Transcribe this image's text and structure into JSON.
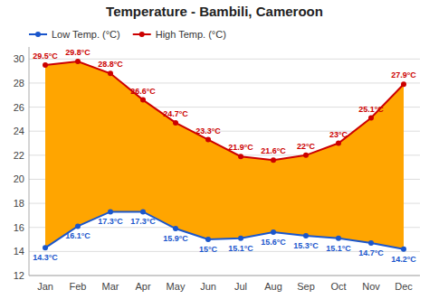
{
  "chart_data": {
    "type": "line",
    "title": "Temperature - Bambili, Cameroon",
    "categories": [
      "Jan",
      "Feb",
      "Mar",
      "Apr",
      "May",
      "Jun",
      "Jul",
      "Aug",
      "Sep",
      "Oct",
      "Nov",
      "Dec"
    ],
    "series": [
      {
        "name": "Low Temp. (°C)",
        "color": "#1a56cc",
        "marker": "circle",
        "values": [
          14.3,
          16.1,
          17.3,
          17.3,
          15.9,
          15.0,
          15.1,
          15.6,
          15.3,
          15.1,
          14.7,
          14.2
        ],
        "value_labels": [
          "14.3°C",
          "16.1°C",
          "17.3°C",
          "17.3°C",
          "15.9°C",
          "15°C",
          "15.1°C",
          "15.6°C",
          "15.3°C",
          "15.1°C",
          "14.7°C",
          "14.2°C"
        ]
      },
      {
        "name": "High Temp. (°C)",
        "color": "#cc0000",
        "marker": "circle",
        "values": [
          29.5,
          29.8,
          28.8,
          26.6,
          24.7,
          23.3,
          21.9,
          21.6,
          22.0,
          23.0,
          25.1,
          27.9
        ],
        "value_labels": [
          "29.5°C",
          "29.8°C",
          "28.8°C",
          "26.6°C",
          "24.7°C",
          "23.3°C",
          "21.9°C",
          "21.6°C",
          "22°C",
          "23°C",
          "25.1°C",
          "27.9°C"
        ]
      }
    ],
    "color": "#FFA500",
    "ylim": [
      12,
      31
    ],
    "yticks": [
      12,
      14,
      16,
      18,
      20,
      22,
      24,
      26,
      28,
      30
    ],
    "grid": true,
    "legend": "upper left",
    "data_labels": true
  }
}
